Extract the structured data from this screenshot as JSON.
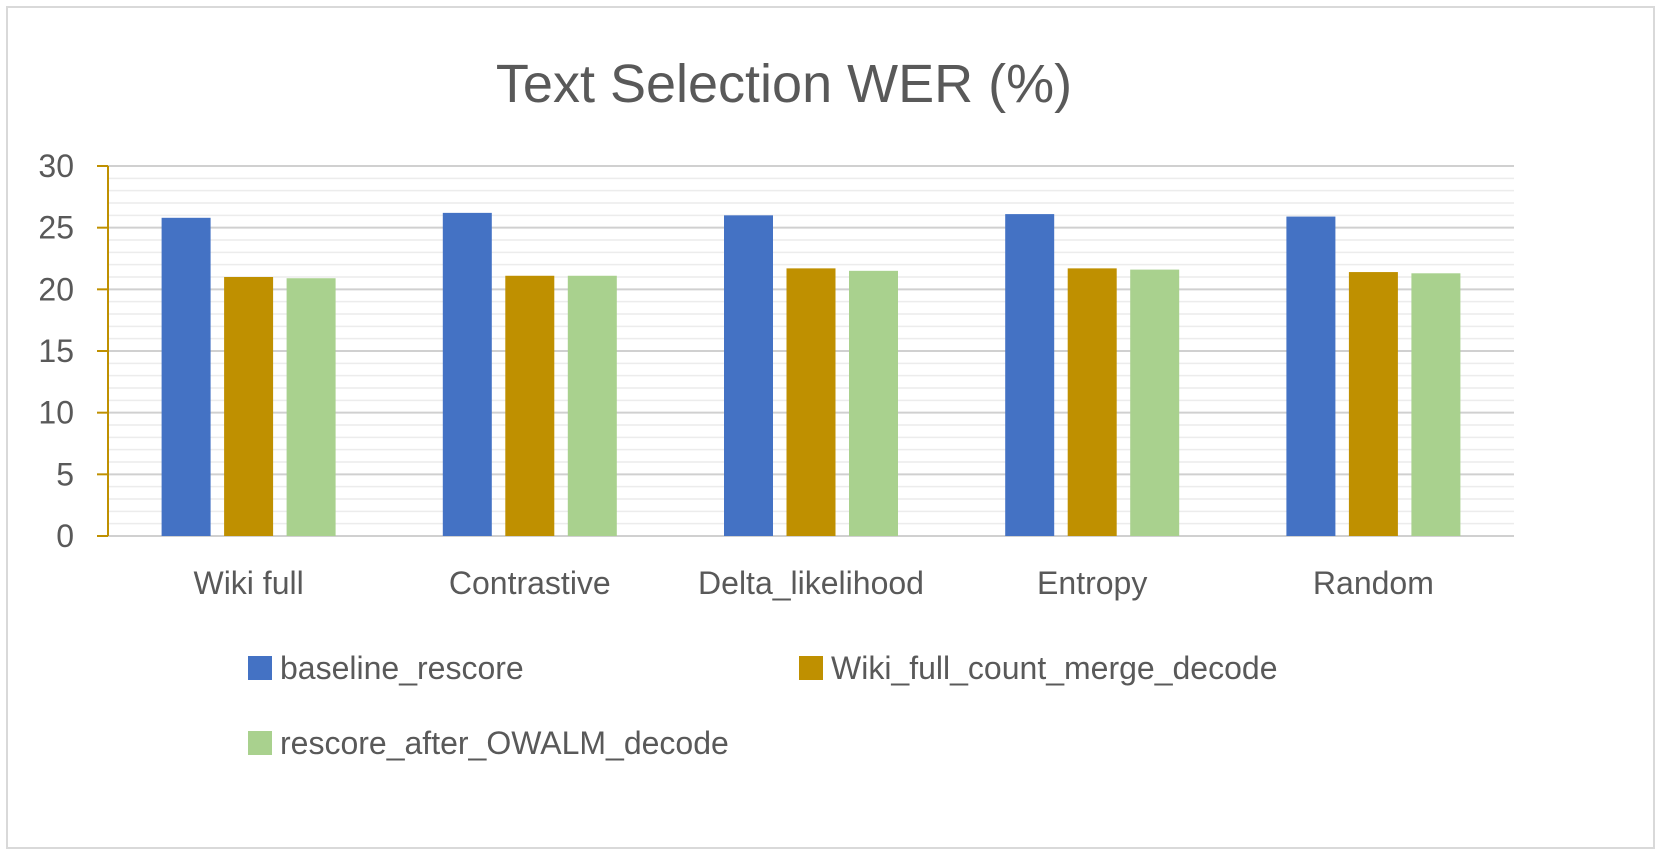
{
  "chart_data": {
    "type": "bar",
    "title": "Text Selection WER (%)",
    "categories": [
      "Wiki full",
      "Contrastive",
      "Delta_likelihood",
      "Entropy",
      "Random"
    ],
    "series": [
      {
        "name": "baseline_rescore",
        "color": "#4472C4",
        "values": [
          25.8,
          26.2,
          26.0,
          26.1,
          25.9
        ]
      },
      {
        "name": "Wiki_full_count_merge_decode",
        "color": "#BF9000",
        "values": [
          21.0,
          21.1,
          21.7,
          21.7,
          21.4
        ]
      },
      {
        "name": "rescore_after_OWALM_decode",
        "color": "#A9D18E",
        "values": [
          20.9,
          21.1,
          21.5,
          21.6,
          21.3
        ]
      }
    ],
    "ylim": [
      0,
      30
    ],
    "yticks": [
      0,
      5,
      10,
      15,
      20,
      25,
      30
    ],
    "grid": true,
    "legend": "bottom",
    "axis_color": "#BF9000",
    "grid_color": "#d9d9d9"
  }
}
